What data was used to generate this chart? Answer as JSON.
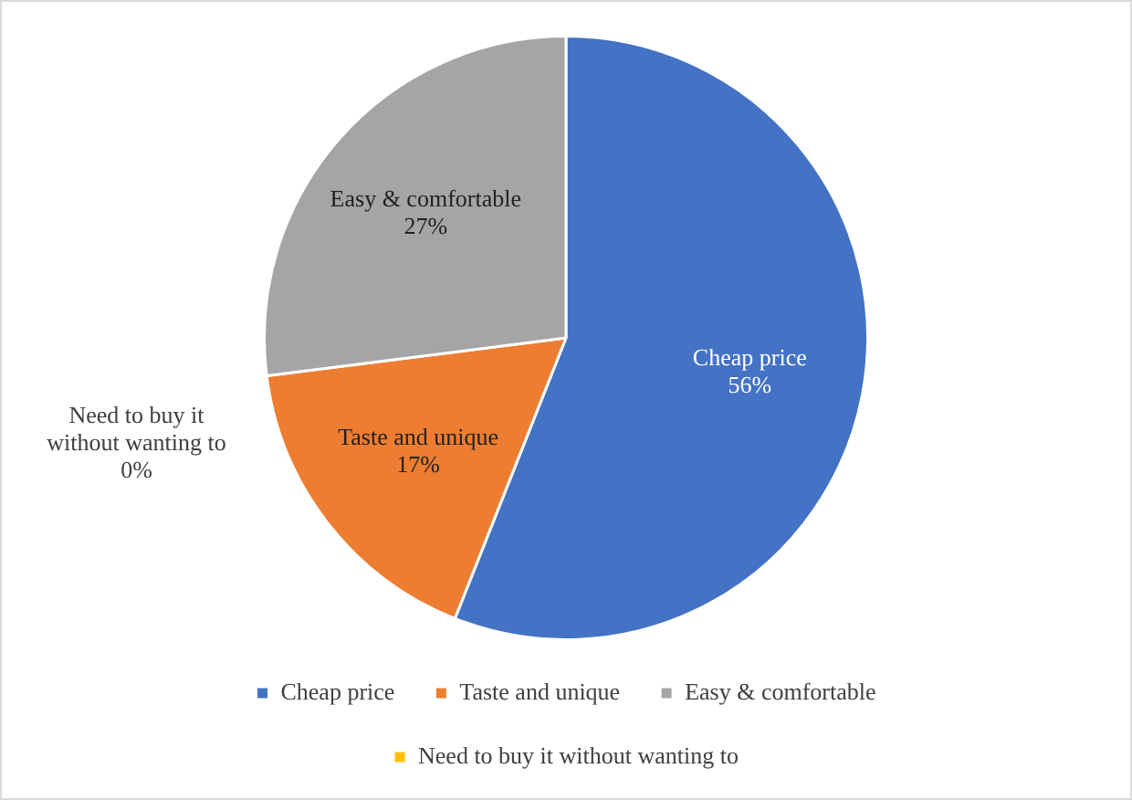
{
  "chart_data": {
    "type": "pie",
    "categories": [
      "Cheap price",
      "Taste and unique",
      "Easy & comfortable",
      "Need to buy it without wanting to"
    ],
    "values": [
      56,
      17,
      27,
      0
    ],
    "colors": [
      "#4472c4",
      "#ed7d31",
      "#a5a5a5",
      "#ffc000"
    ],
    "value_labels": [
      "56%",
      "17%",
      "27%",
      "0%"
    ],
    "legend": "bottom"
  }
}
